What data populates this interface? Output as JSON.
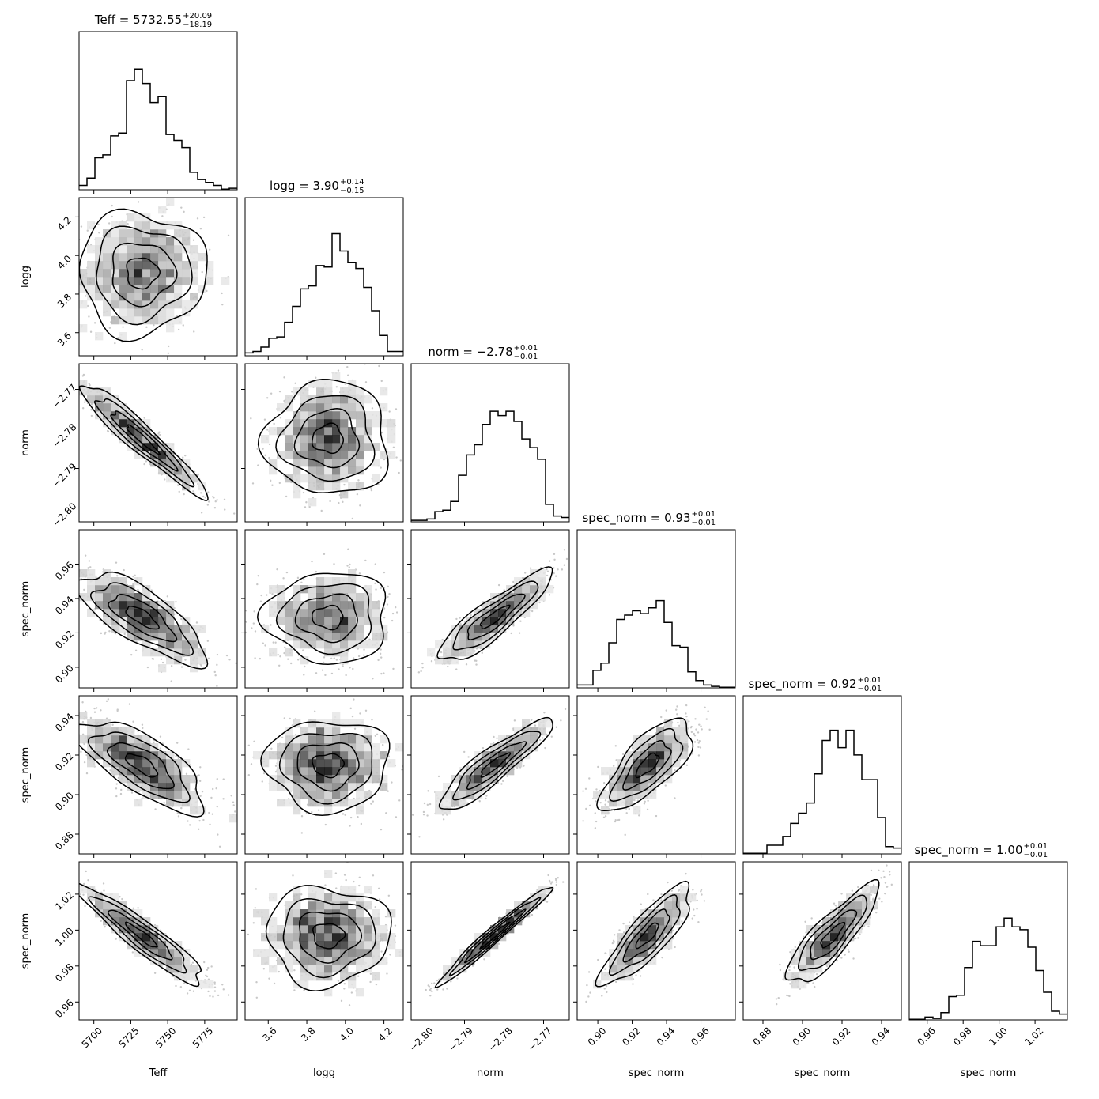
{
  "chart_data": {
    "type": "corner",
    "parameters": [
      {
        "label": "Teff",
        "title": "Teff = 5732.55",
        "sup": "+20.09",
        "sub": "−18.19",
        "range": [
          5690,
          5797
        ],
        "ticks": [
          5700,
          5725,
          5750,
          5775
        ],
        "tick_labels": [
          "5700",
          "5725",
          "5750",
          "5775"
        ],
        "mean": 5732.5,
        "sd": 19.5,
        "hist_bins": [
          0.03,
          0.08,
          0.22,
          0.24,
          0.37,
          0.39,
          0.75,
          0.83,
          0.73,
          0.6,
          0.64,
          0.38,
          0.34,
          0.29,
          0.12,
          0.07,
          0.05,
          0.03,
          0.004,
          0.01
        ]
      },
      {
        "label": "logg",
        "title": "logg = 3.90",
        "sup": "+0.14",
        "sub": "−0.15",
        "range": [
          3.48,
          4.3
        ],
        "ticks": [
          3.6,
          3.8,
          4.0,
          4.2
        ],
        "tick_labels": [
          "3.6",
          "3.8",
          "4.0",
          "4.2"
        ],
        "mean": 3.91,
        "sd": 0.145,
        "hist_bins": [
          0.02,
          0.03,
          0.06,
          0.12,
          0.13,
          0.23,
          0.34,
          0.46,
          0.48,
          0.62,
          0.61,
          0.84,
          0.72,
          0.64,
          0.6,
          0.47,
          0.31,
          0.14,
          0.03,
          0.03
        ]
      },
      {
        "label": "norm",
        "title": "norm = −2.78",
        "sup": "+0.01",
        "sub": "−0.01",
        "range": [
          -2.8035,
          -2.7635
        ],
        "ticks": [
          -2.8,
          -2.79,
          -2.78,
          -2.77
        ],
        "tick_labels": [
          "−2.80",
          "−2.79",
          "−2.78",
          "−2.77"
        ],
        "mean": -2.7825,
        "sd": 0.0065,
        "hist_bins": [
          0.01,
          0.01,
          0.02,
          0.07,
          0.08,
          0.14,
          0.32,
          0.46,
          0.53,
          0.67,
          0.76,
          0.73,
          0.76,
          0.69,
          0.57,
          0.51,
          0.43,
          0.12,
          0.04,
          0.03
        ]
      },
      {
        "label": "spec_norm",
        "title": "spec_norm = 0.93",
        "sup": "+0.01",
        "sub": "−0.01",
        "range": [
          0.888,
          0.98
        ],
        "ticks": [
          0.9,
          0.92,
          0.94,
          0.96
        ],
        "tick_labels": [
          "0.90",
          "0.92",
          "0.94",
          "0.96"
        ],
        "mean": 0.929,
        "sd": 0.012,
        "hist_bins": [
          0.02,
          0.02,
          0.12,
          0.17,
          0.31,
          0.47,
          0.5,
          0.53,
          0.51,
          0.55,
          0.6,
          0.45,
          0.29,
          0.28,
          0.11,
          0.05,
          0.02,
          0.01,
          0.004,
          0.004
        ]
      },
      {
        "label": "spec_norm",
        "title": "spec_norm = 0.92",
        "sup": "+0.01",
        "sub": "−0.01",
        "range": [
          0.87,
          0.95
        ],
        "ticks": [
          0.88,
          0.9,
          0.92,
          0.94
        ],
        "tick_labels": [
          "0.88",
          "0.90",
          "0.92",
          "0.94"
        ],
        "mean": 0.915,
        "sd": 0.0105,
        "hist_bins": [
          0.004,
          0.004,
          0.004,
          0.06,
          0.06,
          0.12,
          0.21,
          0.28,
          0.35,
          0.55,
          0.78,
          0.85,
          0.73,
          0.85,
          0.68,
          0.51,
          0.51,
          0.25,
          0.05,
          0.04
        ]
      },
      {
        "label": "spec_norm",
        "title": "spec_norm = 1.00",
        "sup": "+0.01",
        "sub": "−0.01",
        "range": [
          0.95,
          1.038
        ],
        "ticks": [
          0.96,
          0.98,
          1.0,
          1.02
        ],
        "tick_labels": [
          "0.96",
          "0.98",
          "1.00",
          "1.02"
        ],
        "mean": 0.997,
        "sd": 0.0125,
        "hist_bins": [
          0.004,
          0.004,
          0.02,
          0.01,
          0.05,
          0.16,
          0.17,
          0.36,
          0.54,
          0.51,
          0.51,
          0.64,
          0.7,
          0.64,
          0.62,
          0.5,
          0.34,
          0.19,
          0.06,
          0.04
        ]
      }
    ],
    "correlations": {
      "1-0": 0.0,
      "2-0": -0.95,
      "2-1": 0.0,
      "3-0": -0.75,
      "3-1": 0.0,
      "3-2": 0.88,
      "4-0": -0.72,
      "4-1": 0.0,
      "4-2": 0.9,
      "4-3": 0.72,
      "5-0": -0.93,
      "5-1": 0.0,
      "5-2": 0.98,
      "5-3": 0.84,
      "5-4": 0.85
    },
    "histogram_bins": 20,
    "contour_levels": [
      "0.5-sigma",
      "1.0-sigma",
      "1.5-sigma",
      "2.0-sigma"
    ],
    "colors": {
      "line": "#000000",
      "density": "#000000",
      "points": "#c8c8c8",
      "background": "#ffffff"
    }
  }
}
